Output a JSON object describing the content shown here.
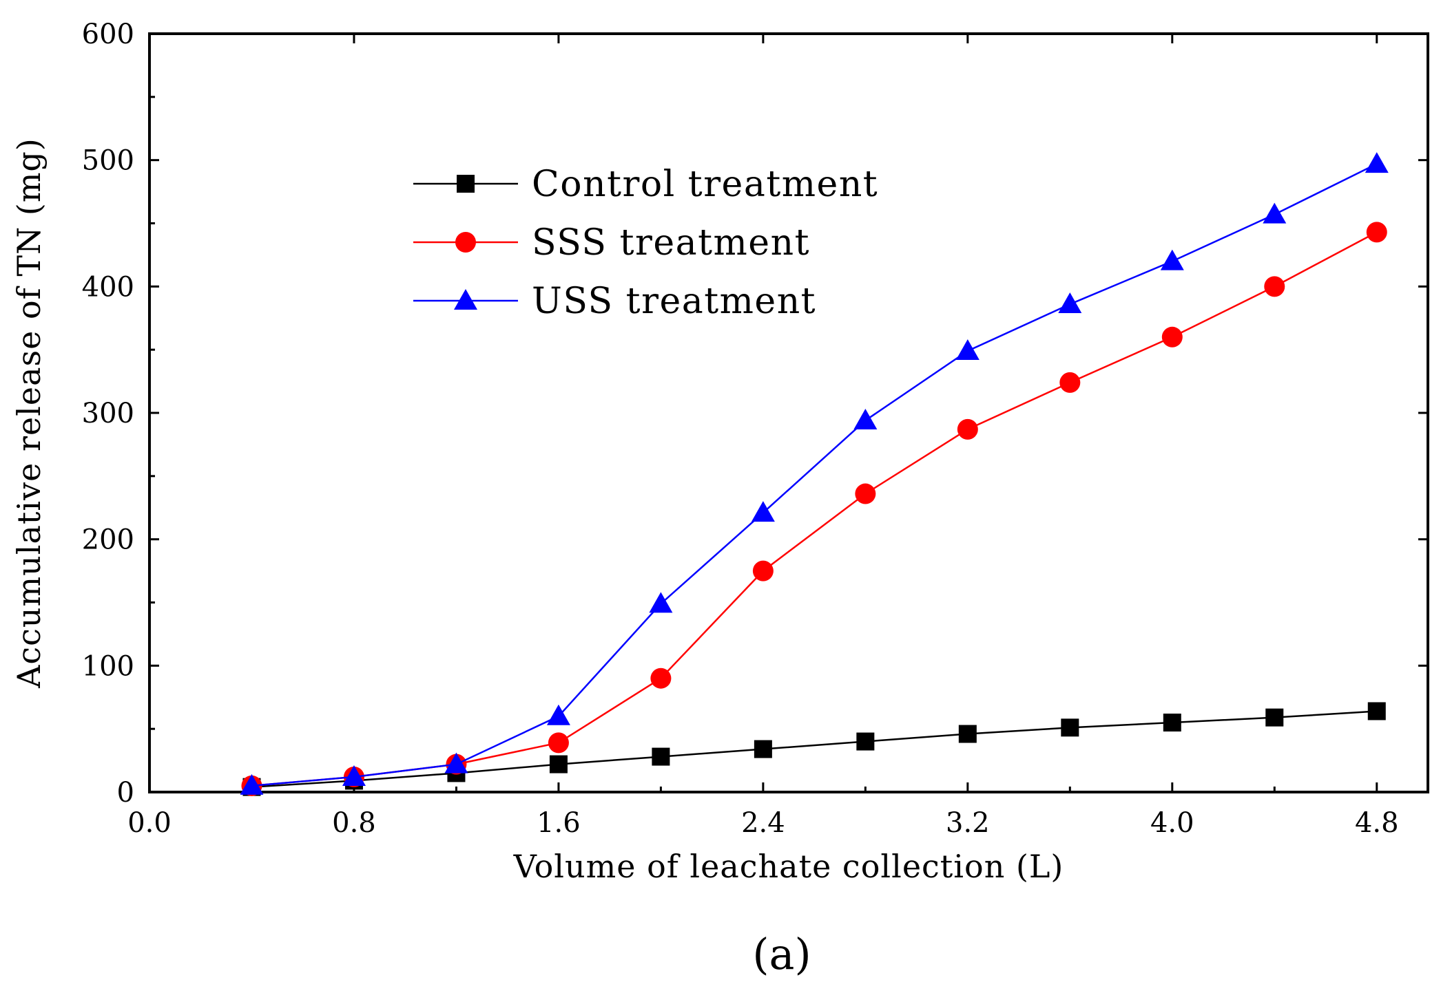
{
  "panel_label": "(a)",
  "chart_data": {
    "type": "line",
    "title": "",
    "xlabel": "Volume of leachate collection (L)",
    "ylabel": "Accumulative release of TN (mg)",
    "xlim": [
      0.0,
      5.0
    ],
    "ylim": [
      0,
      600
    ],
    "xticks": [
      0.0,
      0.8,
      1.6,
      2.4,
      3.2,
      4.0,
      4.8
    ],
    "xtick_labels": [
      "0.0",
      "0.8",
      "1.6",
      "2.4",
      "3.2",
      "4.0",
      "4.8"
    ],
    "yticks": [
      0,
      100,
      200,
      300,
      400,
      500,
      600
    ],
    "ytick_labels": [
      "0",
      "100",
      "200",
      "300",
      "400",
      "500",
      "600"
    ],
    "grid": false,
    "legend_position": "upper-left-center",
    "x": [
      0.4,
      0.8,
      1.2,
      1.6,
      2.0,
      2.4,
      2.8,
      3.2,
      3.6,
      4.0,
      4.4,
      4.8
    ],
    "series": [
      {
        "name": "Control treatment",
        "color": "#000000",
        "marker": "square",
        "values": [
          4,
          9,
          15,
          22,
          28,
          34,
          40,
          46,
          51,
          55,
          59,
          64
        ]
      },
      {
        "name": "SSS treatment",
        "color": "#ff0000",
        "marker": "circle",
        "values": [
          5,
          12,
          22,
          39,
          90,
          175,
          236,
          287,
          324,
          360,
          400,
          443
        ]
      },
      {
        "name": "USS treatment",
        "color": "#0000ff",
        "marker": "triangle",
        "values": [
          5,
          12,
          22,
          60,
          149,
          221,
          294,
          349,
          386,
          420,
          457,
          497
        ]
      }
    ]
  }
}
